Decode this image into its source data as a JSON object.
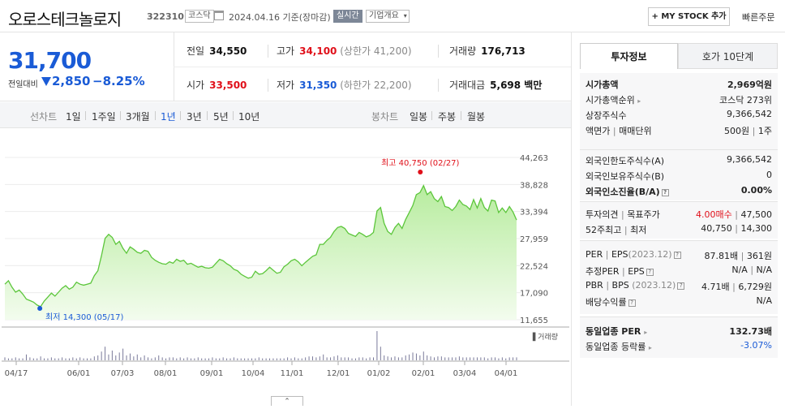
{
  "header": {
    "company_name": "오로스테크놀로지",
    "stock_code": "322310",
    "market_badge": "코스닥",
    "date_text": "2024.04.16  기준(장마감)",
    "realtime_badge": "실시간",
    "company_overview_label": "기업개요",
    "my_stock_label": "+ MY STOCK 추가",
    "quick_order_label": "빠른주문"
  },
  "price": {
    "current": "31,700",
    "change_label": "전일대비",
    "change_value": "2,850",
    "change_pct": "−8.25%",
    "prev_close_label": "전일",
    "prev_close": "34,550",
    "high_label": "고가",
    "high": "34,100",
    "upper_limit": "(상한가 41,200)",
    "volume_label": "거래량",
    "volume": "176,713",
    "open_label": "시가",
    "open": "33,500",
    "low_label": "저가",
    "low": "31,350",
    "lower_limit": "(하한가 22,200)",
    "trade_value_label": "거래대금",
    "trade_value": "5,698 백만"
  },
  "chart_tabs": {
    "line_label": "선차트",
    "ranges": [
      "1일",
      "1주일",
      "3개월",
      "1년",
      "3년",
      "5년",
      "10년"
    ],
    "active_range": "1년",
    "candle_label": "봉차트",
    "candles": [
      "일봉",
      "주봉",
      "월봉"
    ]
  },
  "chart_data": {
    "type": "area",
    "y_ticks": [
      "44,263",
      "38,828",
      "33,394",
      "27,959",
      "22,524",
      "17,090",
      "11,655"
    ],
    "ylim": [
      11655,
      44263
    ],
    "x_ticks": [
      "04/17",
      "06/01",
      "07/03",
      "08/01",
      "09/01",
      "10/04",
      "11/01",
      "12/01",
      "01/02",
      "02/01",
      "03/04",
      "04/01"
    ],
    "series": [
      {
        "values": [
          18800,
          19500,
          18200,
          17200,
          17600,
          16800,
          15800,
          15500,
          15200,
          14600,
          14300,
          15400,
          16200,
          17000,
          16400,
          17200,
          18000,
          18500,
          17800,
          18200,
          19200,
          18800,
          18600,
          18800,
          19000,
          20500,
          21500,
          24500,
          28000,
          28800,
          28200,
          26800,
          27400,
          26000,
          25000,
          26300,
          25800,
          25200,
          25000,
          25600,
          25400,
          24200,
          23600,
          23200,
          22900,
          22800,
          23300,
          23000,
          23800,
          23400,
          23600,
          22800,
          23000,
          22600,
          22200,
          22400,
          22100,
          22000,
          22200,
          23000,
          23800,
          23500,
          22900,
          22500,
          21800,
          21500,
          20800,
          20400,
          20000,
          20200,
          21400,
          20800,
          20900,
          21500,
          22200,
          21600,
          21000,
          21200,
          22300,
          22800,
          23500,
          23800,
          23300,
          22500,
          23200,
          23800,
          24400,
          24700,
          26800,
          26800,
          27600,
          28200,
          29400,
          30200,
          30400,
          30000,
          29000,
          28700,
          28400,
          29200,
          28800,
          28300,
          28600,
          29200,
          33500,
          34200,
          31000,
          29400,
          28800,
          30200,
          31000,
          30000,
          31800,
          33200,
          34600,
          36800,
          37200,
          38600,
          36800,
          37400,
          36000,
          35400,
          36400,
          34400,
          34200,
          33600,
          34400,
          35700,
          34800,
          34500,
          33800,
          35800,
          34100,
          36000,
          34200,
          33500,
          35700,
          35500,
          33200,
          34100,
          33200,
          34400,
          33300,
          31700
        ],
        "volume": [
          3,
          2,
          2,
          3,
          2,
          2,
          6,
          3,
          2,
          2,
          4,
          2,
          2,
          3,
          2,
          2,
          3,
          2,
          2,
          3,
          2,
          3,
          2,
          2,
          2,
          4,
          5,
          9,
          14,
          6,
          10,
          5,
          8,
          12,
          5,
          7,
          4,
          6,
          3,
          5,
          3,
          2,
          3,
          5,
          3,
          2,
          3,
          3,
          2,
          3,
          2,
          3,
          2,
          2,
          3,
          2,
          2,
          2,
          3,
          2,
          2,
          3,
          2,
          2,
          3,
          2,
          2,
          2,
          2,
          2,
          2,
          3,
          2,
          2,
          2,
          2,
          2,
          2,
          2,
          3,
          2,
          3,
          2,
          2,
          3,
          4,
          4,
          3,
          4,
          6,
          3,
          3,
          4,
          5,
          3,
          3,
          3,
          2,
          2,
          3,
          3,
          2,
          3,
          3,
          30,
          14,
          5,
          4,
          3,
          4,
          3,
          3,
          5,
          6,
          8,
          7,
          5,
          9,
          5,
          4,
          3,
          4,
          4,
          3,
          3,
          3,
          3,
          4,
          3,
          3,
          3,
          3,
          3,
          3,
          3,
          2,
          3,
          3,
          2,
          3,
          2,
          3,
          3,
          3
        ]
      }
    ],
    "high_label": "최고 40,750 (02/27)",
    "low_label": "최저 14,300 (05/17)",
    "volume_label": "거래량"
  },
  "side": {
    "tab_active": "투자정보",
    "tab_other": "호가 10단계",
    "market_cap_label": "시가총액",
    "market_cap": "2,969억원",
    "market_cap_rank_label": "시가총액순위",
    "market_cap_rank": "코스닥 273위",
    "shares_label": "상장주식수",
    "shares": "9,366,542",
    "par_label": "액면가",
    "par_sep": "|",
    "unit_label": "매매단위",
    "par_value": "500원",
    "unit_value": "1주",
    "foreign_limit_label": "외국인한도주식수(A)",
    "foreign_limit": "9,366,542",
    "foreign_hold_label": "외국인보유주식수(B)",
    "foreign_hold": "0",
    "foreign_ratio_label": "외국인소진율(B/A)",
    "foreign_ratio": "0.00%",
    "opinion_label": "투자의견",
    "target_label": "목표주가",
    "opinion_value": "4.00매수",
    "target_value": "47,500",
    "w52_label": "52주최고",
    "w52_low_label": "최저",
    "w52_high": "40,750",
    "w52_low": "14,300",
    "per_label": "PER",
    "eps_label": "EPS",
    "eps_year": "(2023.12)",
    "per_value": "87.81배",
    "eps_value": "361원",
    "est_per_label": "추정PER",
    "est_eps_label": "EPS",
    "est_per_value": "N/A",
    "est_eps_value": "N/A",
    "pbr_label": "PBR",
    "bps_label": "BPS",
    "bps_year": "(2023.12)",
    "pbr_value": "4.71배",
    "bps_value": "6,729원",
    "div_label": "배당수익률",
    "div_value": "N/A",
    "ind_per_label": "동일업종 PER",
    "ind_per": "132.73배",
    "ind_rate_label": "동일업종 등락률",
    "ind_rate": "-3.07%"
  },
  "collapse_label": "⌃"
}
